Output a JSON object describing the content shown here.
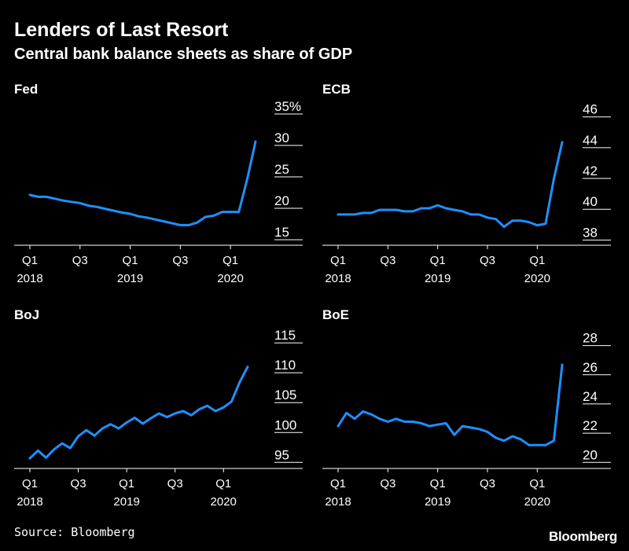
{
  "title": "Lenders of Last Resort",
  "subtitle": "Central bank balance sheets as share of GDP",
  "source": "Source: Bloomberg",
  "brand": "Bloomberg",
  "colors": {
    "background": "#000000",
    "line": "#1e90ff",
    "text": "#ffffff",
    "axis": "#ffffff"
  },
  "chart_data": [
    {
      "type": "line",
      "title": "Fed",
      "x_tick_labels": [
        {
          "x": 0,
          "lines": [
            "Q1",
            "2018"
          ]
        },
        {
          "x": 6,
          "lines": [
            "Q3",
            ""
          ]
        },
        {
          "x": 12,
          "lines": [
            "Q1",
            "2019"
          ]
        },
        {
          "x": 18,
          "lines": [
            "Q3",
            ""
          ]
        },
        {
          "x": 24,
          "lines": [
            "Q1",
            "2020"
          ]
        }
      ],
      "xlim": [
        -1,
        29
      ],
      "ylim": [
        13,
        36
      ],
      "y_ticks": [
        15,
        20,
        25,
        30,
        35
      ],
      "y_tick_labels": [
        "15",
        "20",
        "25",
        "30",
        "35%"
      ],
      "series": [
        {
          "x": [
            0,
            1,
            2,
            3,
            4,
            5,
            6,
            7,
            8,
            9,
            10,
            11,
            12,
            13,
            14,
            15,
            16,
            17,
            18,
            19,
            20,
            21,
            22,
            23,
            24,
            25,
            26,
            27
          ],
          "values": [
            21,
            20.7,
            20.7,
            20.4,
            20.1,
            19.9,
            19.7,
            19.3,
            19.1,
            18.8,
            18.5,
            18.2,
            18,
            17.6,
            17.4,
            17.1,
            16.8,
            16.5,
            16.2,
            16.2,
            16.6,
            17.5,
            17.7,
            18.3,
            18.3,
            18.3,
            23.5,
            29.5
          ]
        }
      ]
    },
    {
      "type": "line",
      "title": "ECB",
      "x_tick_labels": [
        {
          "x": 0,
          "lines": [
            "Q1",
            "2018"
          ]
        },
        {
          "x": 6,
          "lines": [
            "Q3",
            ""
          ]
        },
        {
          "x": 12,
          "lines": [
            "Q1",
            "2019"
          ]
        },
        {
          "x": 18,
          "lines": [
            "Q3",
            ""
          ]
        },
        {
          "x": 24,
          "lines": [
            "Q1",
            "2020"
          ]
        }
      ],
      "xlim": [
        -1,
        29
      ],
      "ylim": [
        37.2,
        46.6
      ],
      "y_ticks": [
        38,
        40,
        42,
        44,
        46
      ],
      "y_tick_labels": [
        "38",
        "40",
        "42",
        "44",
        "46"
      ],
      "series": [
        {
          "x": [
            0,
            1,
            2,
            3,
            4,
            5,
            6,
            7,
            8,
            9,
            10,
            11,
            12,
            13,
            14,
            15,
            16,
            17,
            18,
            19,
            20,
            21,
            22,
            23,
            24,
            25,
            26,
            27
          ],
          "values": [
            39.2,
            39.2,
            39.2,
            39.3,
            39.3,
            39.5,
            39.5,
            39.5,
            39.4,
            39.4,
            39.6,
            39.6,
            39.8,
            39.6,
            39.5,
            39.4,
            39.2,
            39.2,
            39,
            38.9,
            38.4,
            38.8,
            38.8,
            38.7,
            38.5,
            38.6,
            41.5,
            43.9
          ]
        }
      ]
    },
    {
      "type": "line",
      "title": "BoJ",
      "x_tick_labels": [
        {
          "x": 0,
          "lines": [
            "Q1",
            "2018"
          ]
        },
        {
          "x": 6,
          "lines": [
            "Q3",
            ""
          ]
        },
        {
          "x": 12,
          "lines": [
            "Q1",
            "2019"
          ]
        },
        {
          "x": 18,
          "lines": [
            "Q3",
            ""
          ]
        },
        {
          "x": 24,
          "lines": [
            "Q1",
            "2020"
          ]
        }
      ],
      "xlim": [
        -1,
        29
      ],
      "ylim": [
        92.8,
        117
      ],
      "y_ticks": [
        95,
        100,
        105,
        110,
        115
      ],
      "y_tick_labels": [
        "95",
        "100",
        "105",
        "110",
        "115"
      ],
      "series": [
        {
          "x": [
            0,
            1,
            2,
            3,
            4,
            5,
            6,
            7,
            8,
            9,
            10,
            11,
            12,
            13,
            14,
            15,
            16,
            17,
            18,
            19,
            20,
            21,
            22,
            23,
            24,
            25,
            26,
            27
          ],
          "values": [
            94.5,
            95.8,
            94.6,
            96,
            97,
            96.2,
            98.2,
            99.2,
            98.3,
            99.5,
            100.2,
            99.5,
            100.5,
            101.3,
            100.3,
            101.2,
            102,
            101.4,
            102,
            102.4,
            101.7,
            102.7,
            103.3,
            102.4,
            103,
            104,
            107.2,
            109.8
          ]
        }
      ]
    },
    {
      "type": "line",
      "title": "BoE",
      "x_tick_labels": [
        {
          "x": 0,
          "lines": [
            "Q1",
            "2018"
          ]
        },
        {
          "x": 6,
          "lines": [
            "Q3",
            ""
          ]
        },
        {
          "x": 12,
          "lines": [
            "Q1",
            "2019"
          ]
        },
        {
          "x": 18,
          "lines": [
            "Q3",
            ""
          ]
        },
        {
          "x": 24,
          "lines": [
            "Q1",
            "2020"
          ]
        }
      ],
      "xlim": [
        -1,
        29
      ],
      "ylim": [
        19.1,
        29
      ],
      "y_ticks": [
        20,
        22,
        24,
        26,
        28
      ],
      "y_tick_labels": [
        "20",
        "22",
        "24",
        "26",
        "28"
      ],
      "series": [
        {
          "x": [
            0,
            1,
            2,
            3,
            4,
            5,
            6,
            7,
            8,
            9,
            10,
            11,
            12,
            13,
            14,
            15,
            16,
            17,
            18,
            19,
            20,
            21,
            22,
            23,
            24,
            25,
            26,
            27
          ],
          "values": [
            22,
            22.9,
            22.5,
            23,
            22.8,
            22.5,
            22.3,
            22.5,
            22.3,
            22.3,
            22.2,
            22,
            22.1,
            22.2,
            21.4,
            22,
            21.9,
            21.8,
            21.6,
            21.2,
            21,
            21.3,
            21.1,
            20.7,
            20.7,
            20.7,
            21,
            26.2
          ]
        }
      ]
    }
  ]
}
